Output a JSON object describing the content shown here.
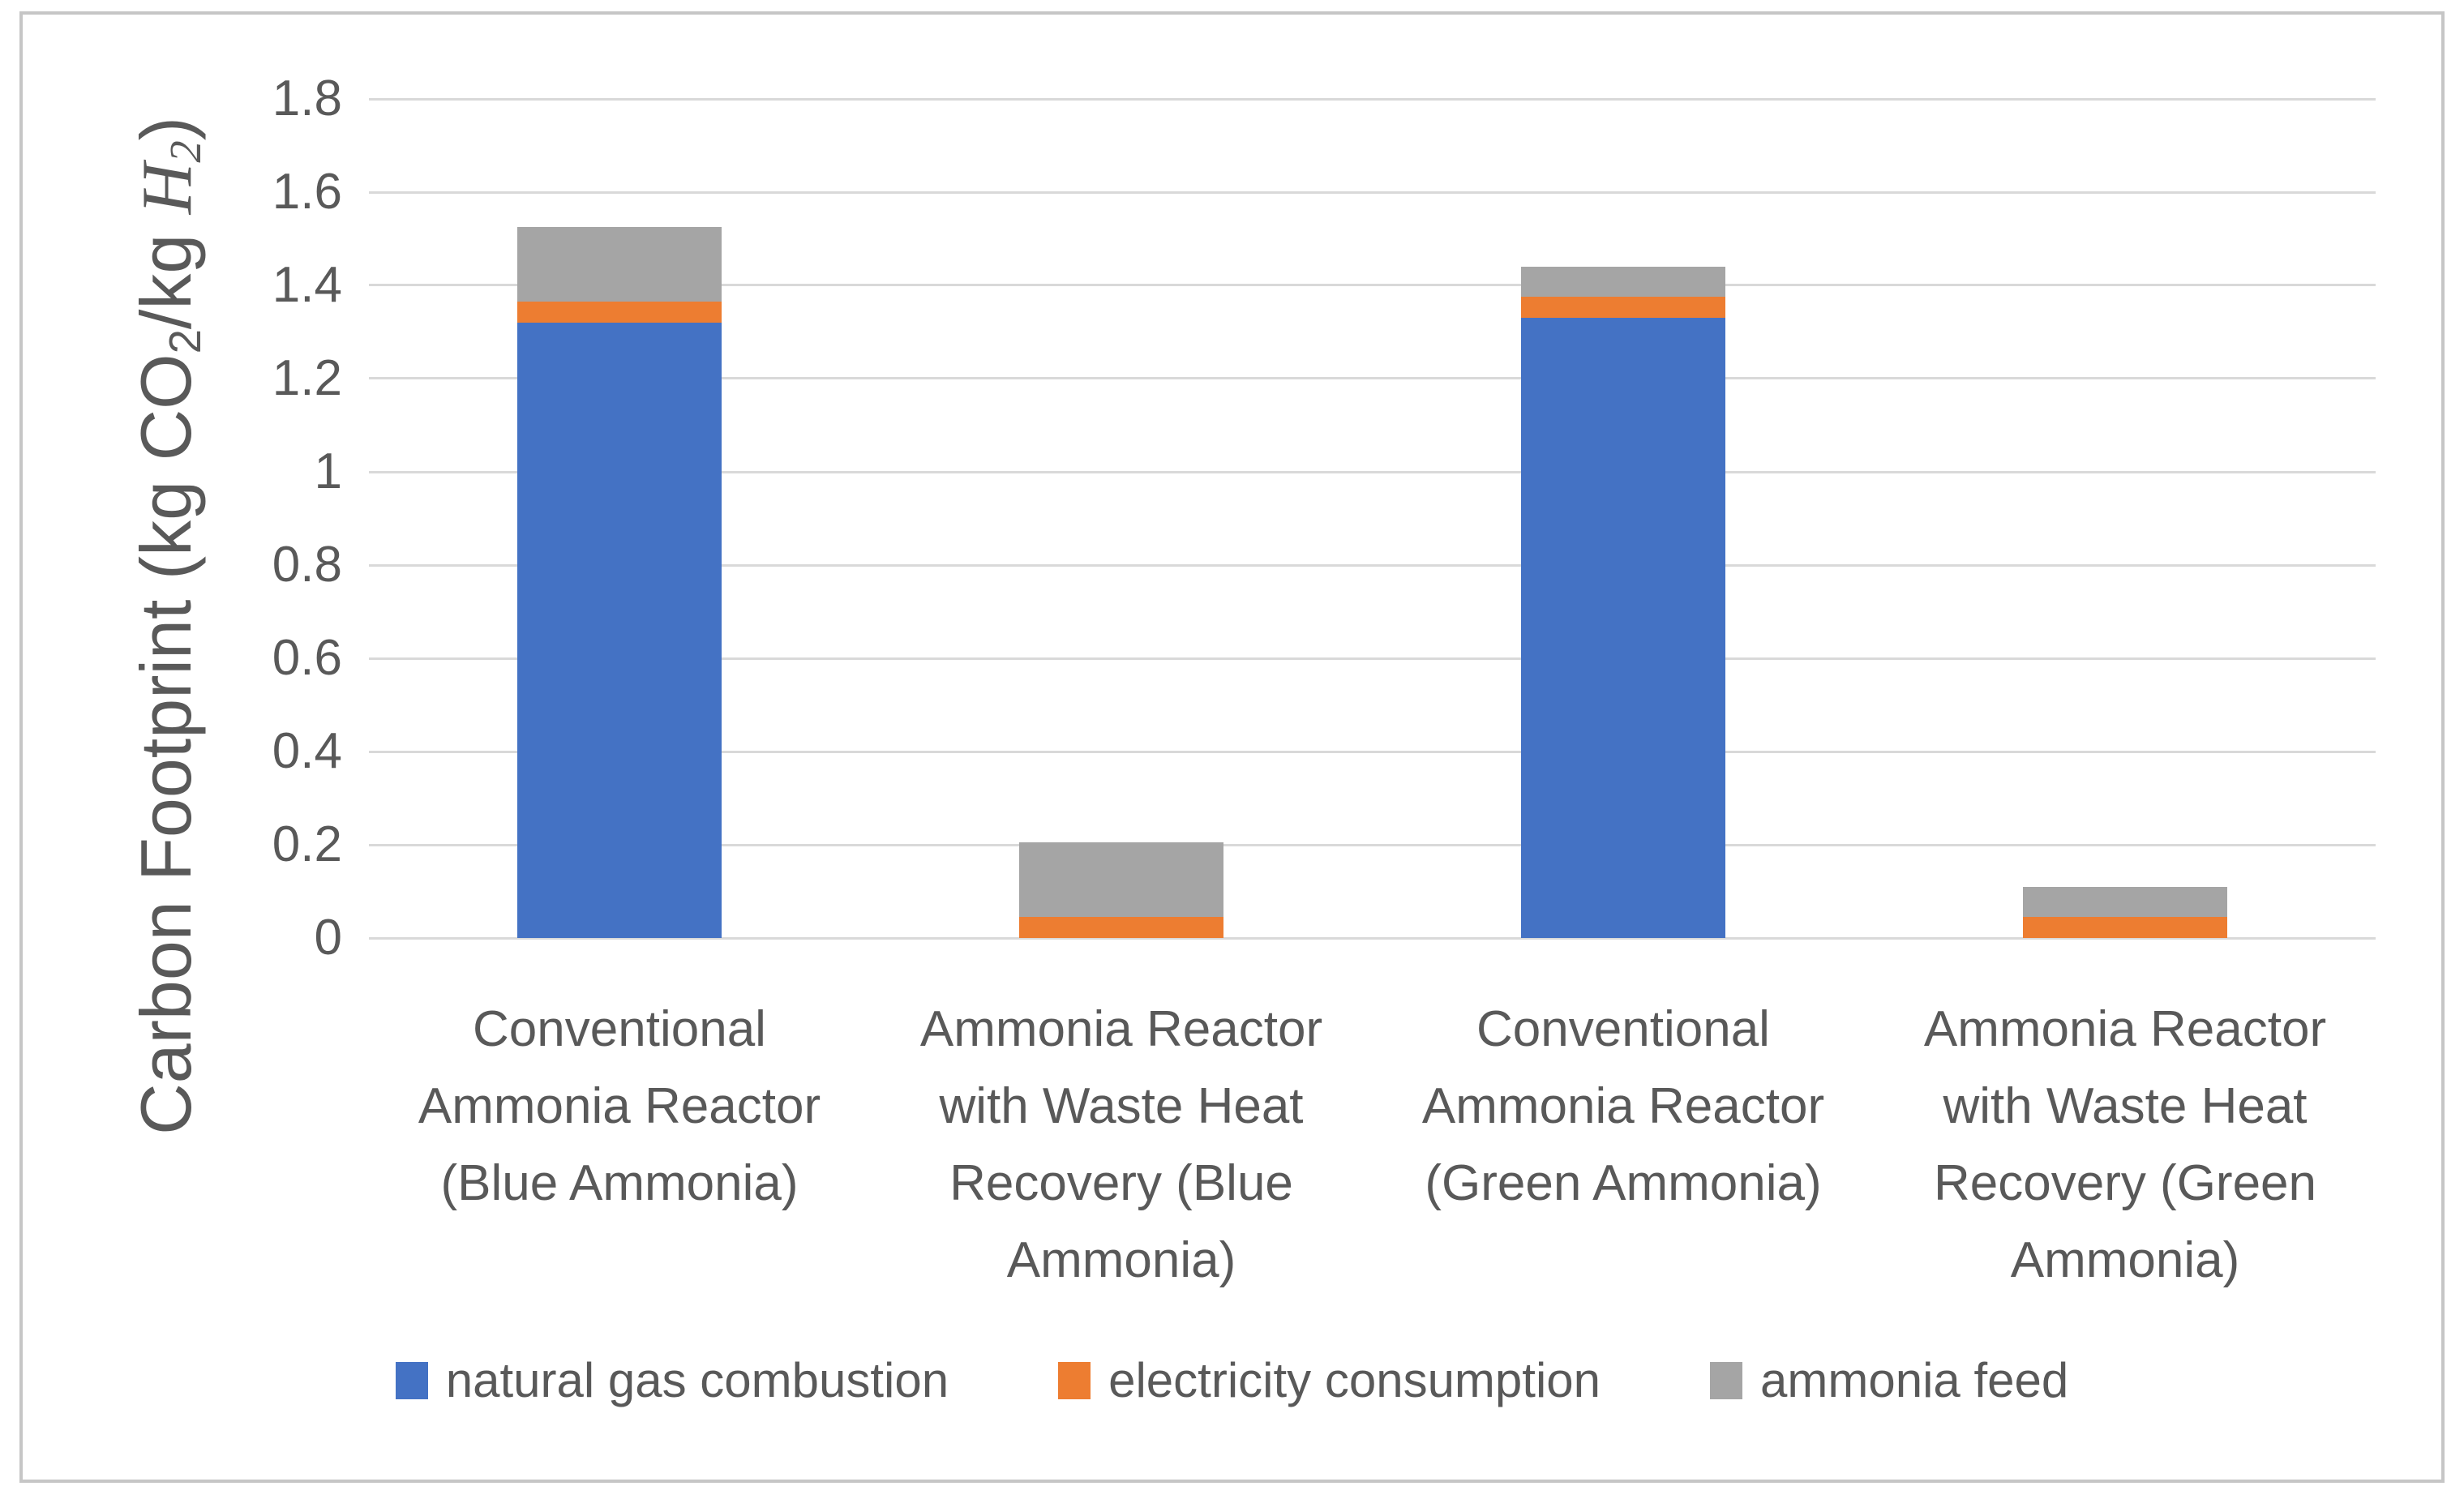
{
  "chart_data": {
    "type": "bar",
    "stacked": true,
    "title": "",
    "ylabel": "Carbon Footprint (kg CO2/kg H2)",
    "ylabel_parts": [
      {
        "text": "Carbon Footprint (kg CO",
        "style": "plain"
      },
      {
        "text": "2",
        "style": "sub"
      },
      {
        "text": "/kg ",
        "style": "plain"
      },
      {
        "text": "H",
        "style": "mathserif"
      },
      {
        "text": "2",
        "style": "sub-mathserif"
      },
      {
        "text": ")",
        "style": "plain"
      }
    ],
    "xlabel": "",
    "categories": [
      "Conventional Ammonia Reactor (Blue Ammonia)",
      "Ammonia Reactor with Waste Heat Recovery (Blue Ammonia)",
      "Conventional Ammonia Reactor (Green Ammonia)",
      "Ammonia Reactor with Waste Heat Recovery (Green Ammonia)"
    ],
    "category_lines": [
      [
        "Conventional",
        "Ammonia Reactor",
        "(Blue Ammonia)"
      ],
      [
        "Ammonia Reactor",
        "with Waste Heat",
        "Recovery (Blue",
        "Ammonia)"
      ],
      [
        "Conventional",
        "Ammonia Reactor",
        "(Green Ammonia)"
      ],
      [
        "Ammonia Reactor",
        "with Waste Heat",
        "Recovery (Green",
        "Ammonia)"
      ]
    ],
    "series": [
      {
        "name": "natural gas combustion",
        "color": "#4472C4",
        "values": [
          1.32,
          0,
          1.33,
          0
        ]
      },
      {
        "name": "electricity consumption",
        "color": "#ED7D31",
        "values": [
          0.045,
          0.045,
          0.045,
          0.045
        ]
      },
      {
        "name": "ammonia feed",
        "color": "#A5A5A5",
        "values": [
          0.16,
          0.16,
          0.065,
          0.065
        ]
      }
    ],
    "stack_totals": [
      1.525,
      0.205,
      1.44,
      0.11
    ],
    "ylim": [
      0,
      1.8
    ],
    "ytick_step": 0.2,
    "ytick_labels": [
      "0",
      "0.2",
      "0.4",
      "0.6",
      "0.8",
      "1",
      "1.2",
      "1.4",
      "1.6",
      "1.8"
    ],
    "grid": true,
    "legend_position": "bottom",
    "colors": {
      "gridline": "#d9d9d9",
      "axis_text": "#595959",
      "frame_border": "#c6c6c6",
      "background": "#ffffff"
    }
  }
}
